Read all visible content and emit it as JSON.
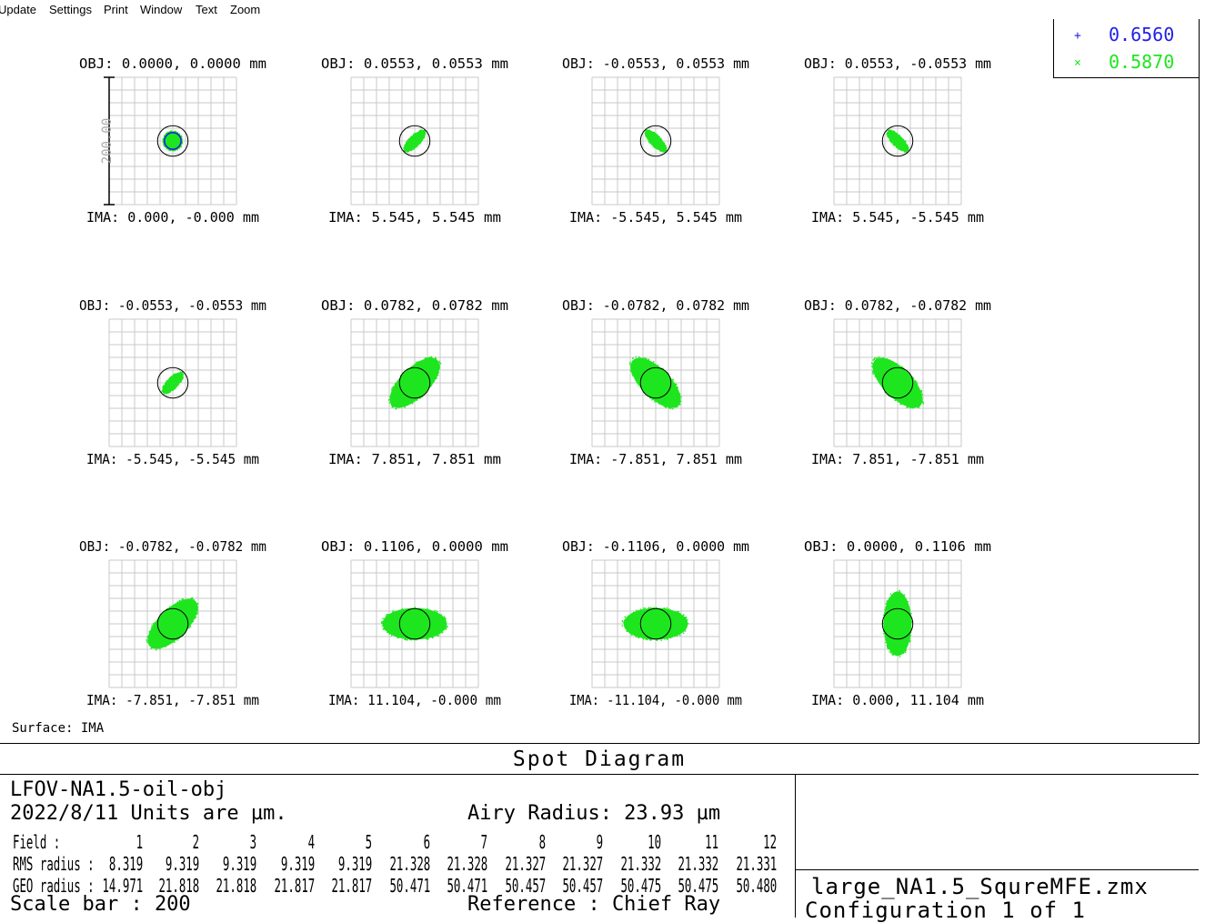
{
  "menu": [
    "Update",
    "Settings",
    "Print",
    "Window",
    "Text",
    "Zoom"
  ],
  "legend": [
    {
      "marker": "+",
      "value": "0.6560",
      "color": "#1f1fe6"
    },
    {
      "marker": "×",
      "value": "0.5870",
      "color": "#1ee61e"
    }
  ],
  "surface_label": "Surface: IMA",
  "title": "Spot Diagram",
  "info": {
    "lens_name": "LFOV-NA1.5-oil-obj",
    "date_units": "2022/8/11  Units are µm.",
    "airy_radius": "Airy Radius: 23.93 µm",
    "field_label": "Field   :",
    "rms_label": "RMS radius :",
    "geo_label": "GEO radius :",
    "scale_bar": "Scale bar  : 200",
    "reference": "Reference  : Chief Ray",
    "fields": [
      "1",
      "2",
      "3",
      "4",
      "5",
      "6",
      "7",
      "8",
      "9",
      "10",
      "11",
      "12"
    ],
    "rms": [
      "8.319",
      "9.319",
      "9.319",
      "9.319",
      "9.319",
      "21.328",
      "21.328",
      "21.327",
      "21.327",
      "21.332",
      "21.332",
      "21.331"
    ],
    "geo": [
      "14.971",
      "21.818",
      "21.818",
      "21.817",
      "21.817",
      "50.471",
      "50.471",
      "50.457",
      "50.457",
      "50.475",
      "50.475",
      "50.480"
    ]
  },
  "file_name": "large_NA1.5_SqureMFE.zmx",
  "configuration": "Configuration 1 of 1",
  "chart_data": {
    "type": "scatter",
    "title": "Spot Diagram",
    "scale_bar": 200,
    "scale_bar_label": "200.00",
    "airy_radius_um": 23.93,
    "wavelengths": [
      {
        "value": 0.656,
        "color": "#1f1fe6",
        "marker": "+"
      },
      {
        "value": 0.587,
        "color": "#1ee61e",
        "marker": "×"
      }
    ],
    "fields": [
      {
        "obj": "OBJ: 0.0000, 0.0000 mm",
        "ima": "IMA: 0.000, -0.000 mm",
        "spot": {
          "a": 14.971,
          "b": 14.971,
          "angle": 0
        }
      },
      {
        "obj": "OBJ: 0.0553, 0.0553 mm",
        "ima": "IMA: 5.545, 5.545 mm",
        "spot": {
          "a": 21.818,
          "b": 8.5,
          "angle": -45
        }
      },
      {
        "obj": "OBJ: -0.0553, 0.0553 mm",
        "ima": "IMA: -5.545, 5.545 mm",
        "spot": {
          "a": 21.818,
          "b": 8.5,
          "angle": 45
        }
      },
      {
        "obj": "OBJ: 0.0553, -0.0553 mm",
        "ima": "IMA: 5.545, -5.545 mm",
        "spot": {
          "a": 21.817,
          "b": 8.5,
          "angle": 45
        }
      },
      {
        "obj": "OBJ: -0.0553, -0.0553 mm",
        "ima": "IMA: -5.545, -5.545 mm",
        "spot": {
          "a": 21.817,
          "b": 8.5,
          "angle": -45
        }
      },
      {
        "obj": "OBJ: 0.0782, 0.0782 mm",
        "ima": "IMA: 7.851, 7.851 mm",
        "spot": {
          "a": 50.471,
          "b": 23,
          "angle": -45
        }
      },
      {
        "obj": "OBJ: -0.0782, 0.0782 mm",
        "ima": "IMA: -7.851, 7.851 mm",
        "spot": {
          "a": 50.471,
          "b": 23,
          "angle": 45
        }
      },
      {
        "obj": "OBJ: 0.0782, -0.0782 mm",
        "ima": "IMA: 7.851, -7.851 mm",
        "spot": {
          "a": 50.457,
          "b": 23,
          "angle": 45
        }
      },
      {
        "obj": "OBJ: -0.0782, -0.0782 mm",
        "ima": "IMA: -7.851, -7.851 mm",
        "spot": {
          "a": 50.457,
          "b": 23,
          "angle": -45
        }
      },
      {
        "obj": "OBJ: 0.1106, 0.0000 mm",
        "ima": "IMA: 11.104, -0.000 mm",
        "spot": {
          "a": 50.475,
          "b": 25,
          "angle": 0
        }
      },
      {
        "obj": "OBJ: -0.1106, 0.0000 mm",
        "ima": "IMA: -11.104, -0.000 mm",
        "spot": {
          "a": 50.475,
          "b": 25,
          "angle": 0
        }
      },
      {
        "obj": "OBJ: 0.0000, 0.1106 mm",
        "ima": "IMA: 0.000, 11.104 mm",
        "spot": {
          "a": 50.48,
          "b": 22,
          "angle": 90
        }
      }
    ]
  }
}
